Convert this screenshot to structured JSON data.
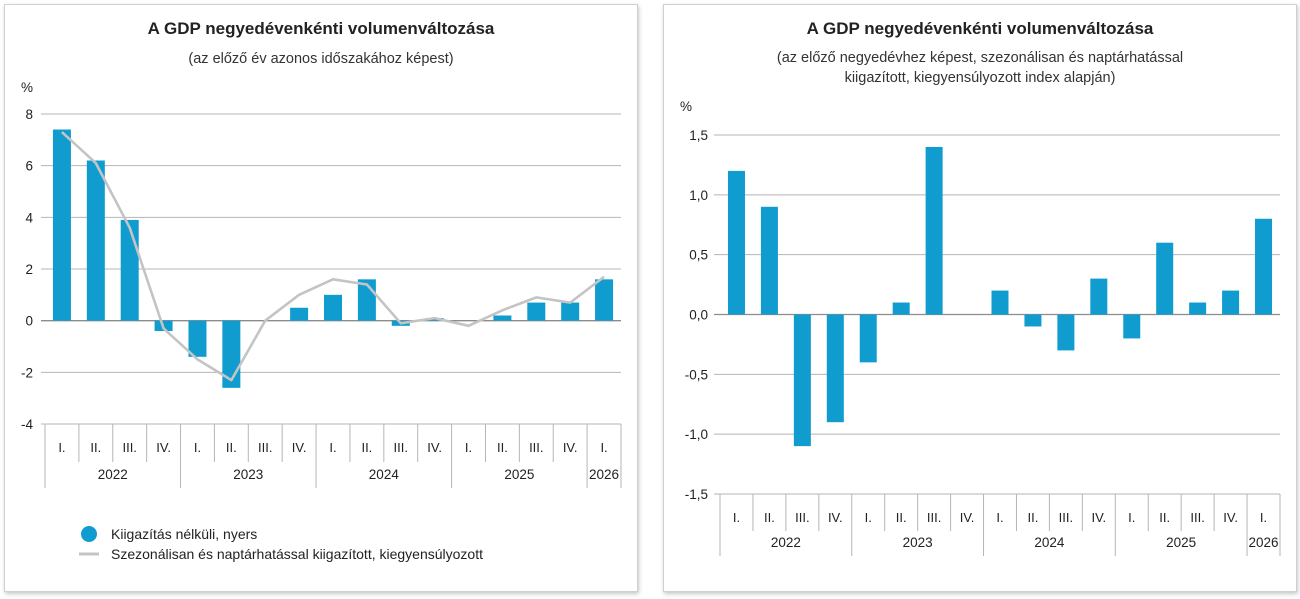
{
  "colors": {
    "bar": "#109ccf",
    "line": "#c4c4c4",
    "grid": "#b5b5b5"
  },
  "chart_data": [
    {
      "type": "bar",
      "title": "A GDP negyedévenkénti volumenváltozása",
      "subtitle": [
        "(az előző év azonos időszakához képest)"
      ],
      "unit_label": "%",
      "ylim": [
        -4,
        8
      ],
      "ticks": [
        8,
        6,
        4,
        2,
        0,
        -2,
        -4
      ],
      "tick_labels": [
        "8",
        "6",
        "4",
        "2",
        "0",
        "-2",
        "-4"
      ],
      "categories": [
        "I.",
        "II.",
        "III.",
        "IV.",
        "I.",
        "II.",
        "III.",
        "IV.",
        "I.",
        "II.",
        "III.",
        "IV.",
        "I.",
        "II.",
        "III.",
        "IV.",
        "I."
      ],
      "years": [
        {
          "label": "2022",
          "count": 4
        },
        {
          "label": "2023",
          "count": 4
        },
        {
          "label": "2024",
          "count": 4
        },
        {
          "label": "2025",
          "count": 4
        },
        {
          "label": "2026",
          "count": 1
        }
      ],
      "grid": true,
      "legend_position": "bottom-left",
      "series": [
        {
          "name": "Kiigazítás nélküli, nyers",
          "kind": "bar",
          "values": [
            7.4,
            6.2,
            3.9,
            -0.4,
            -1.4,
            -2.6,
            0.0,
            0.5,
            1.0,
            1.6,
            -0.2,
            0.1,
            0.0,
            0.2,
            0.7,
            0.7,
            1.6
          ]
        },
        {
          "name": "Szezonálisan és naptárhatással kiigazított, kiegyensúlyozott",
          "kind": "line",
          "values": [
            7.3,
            6.1,
            3.6,
            -0.3,
            -1.5,
            -2.3,
            0.0,
            1.0,
            1.6,
            1.4,
            -0.1,
            0.1,
            -0.2,
            0.4,
            0.9,
            0.7,
            1.7
          ]
        }
      ]
    },
    {
      "type": "bar",
      "title": "A GDP negyedévenkénti volumenváltozása",
      "subtitle": [
        "(az előző negyedévhez képest, szezonálisan és naptárhatással",
        "kiigazított, kiegyensúlyozott index alapján)"
      ],
      "unit_label": "%",
      "ylim": [
        -1.5,
        1.5
      ],
      "ticks": [
        1.5,
        1.0,
        0.5,
        0.0,
        -0.5,
        -1.0,
        -1.5
      ],
      "tick_labels": [
        "1,5",
        "1,0",
        "0,5",
        "0,0",
        "-0,5",
        "-1,0",
        "-1,5"
      ],
      "categories": [
        "I.",
        "II.",
        "III.",
        "IV.",
        "I.",
        "II.",
        "III.",
        "IV.",
        "I.",
        "II.",
        "III.",
        "IV.",
        "I.",
        "II.",
        "III.",
        "IV.",
        "I."
      ],
      "years": [
        {
          "label": "2022",
          "count": 4
        },
        {
          "label": "2023",
          "count": 4
        },
        {
          "label": "2024",
          "count": 4
        },
        {
          "label": "2025",
          "count": 4
        },
        {
          "label": "2026",
          "count": 1
        }
      ],
      "grid": true,
      "series": [
        {
          "kind": "bar",
          "values": [
            1.2,
            0.9,
            -1.1,
            -0.9,
            -0.4,
            0.1,
            1.4,
            0.0,
            0.2,
            -0.1,
            -0.3,
            0.3,
            -0.2,
            0.6,
            0.1,
            0.2,
            0.8
          ]
        }
      ]
    }
  ]
}
